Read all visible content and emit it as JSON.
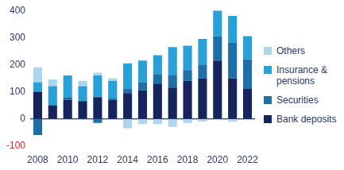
{
  "chart_data": {
    "type": "bar",
    "stacked": true,
    "grid": false,
    "legend": "right",
    "categories": [
      "2008",
      null,
      "2010",
      null,
      "2012",
      null,
      "2014",
      null,
      "2016",
      null,
      "2018",
      null,
      "2020",
      null,
      "2022"
    ],
    "series": [
      {
        "name": "Bank deposits",
        "color": "#15245c",
        "values": [
          100,
          50,
          70,
          65,
          80,
          70,
          95,
          105,
          130,
          115,
          140,
          150,
          215,
          150,
          110
        ]
      },
      {
        "name": "Securities",
        "color": "#1d6fa5",
        "values": [
          -60,
          0,
          10,
          0,
          -15,
          5,
          15,
          30,
          35,
          45,
          40,
          50,
          90,
          130,
          110
        ]
      },
      {
        "name": "Insurance & pensions",
        "color": "#2aa0d9",
        "values": [
          35,
          70,
          80,
          55,
          80,
          65,
          95,
          80,
          70,
          105,
          90,
          95,
          95,
          100,
          85
        ]
      },
      {
        "name": "Others",
        "color": "#add6ee",
        "values": [
          55,
          25,
          0,
          20,
          10,
          10,
          -35,
          -20,
          -20,
          -30,
          -15,
          -10,
          -5,
          -10,
          -5
        ]
      }
    ],
    "ylim": [
      -100,
      400
    ],
    "yticks": [
      -100,
      0,
      100,
      200,
      300,
      400
    ]
  }
}
